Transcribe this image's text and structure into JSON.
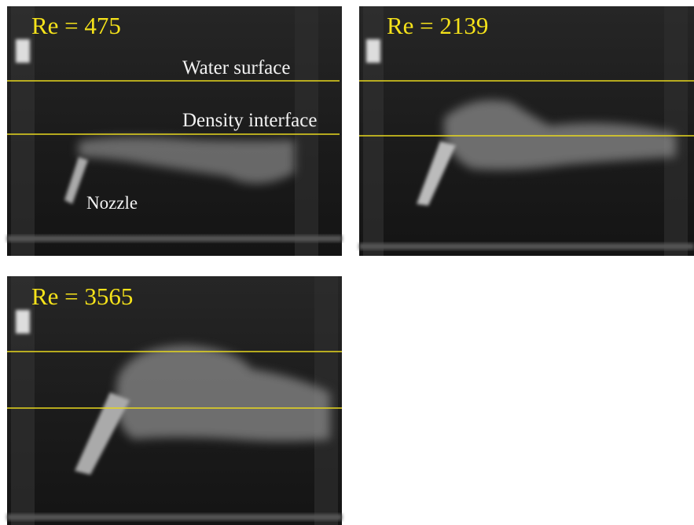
{
  "panels": [
    {
      "label": "Re = 475",
      "annotations": {
        "water_surface": "Water surface",
        "density_interface": "Density interface",
        "nozzle": "Nozzle"
      }
    },
    {
      "label": "Re = 2139"
    },
    {
      "label": "Re = 3565"
    }
  ]
}
